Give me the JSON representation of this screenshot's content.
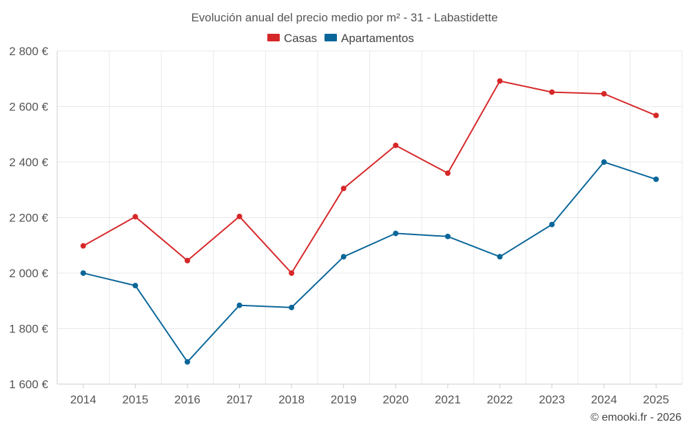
{
  "chart_data": {
    "type": "line",
    "title": "Evolución anual del precio medio por m² - 31 - Labastidette",
    "categories": [
      "2014",
      "2015",
      "2016",
      "2017",
      "2018",
      "2019",
      "2020",
      "2021",
      "2022",
      "2023",
      "2024",
      "2025"
    ],
    "series": [
      {
        "name": "Casas",
        "color": "#d62728",
        "values": [
          2098,
          2203,
          2045,
          2204,
          2000,
          2305,
          2460,
          2360,
          2692,
          2652,
          2646,
          2568
        ]
      },
      {
        "name": "Apartamentos",
        "color": "#0a6699",
        "values": [
          2000,
          1955,
          1680,
          1884,
          1876,
          2059,
          2143,
          2132,
          2059,
          2175,
          2400,
          2338
        ]
      }
    ],
    "ylim": [
      1600,
      2800
    ],
    "yticks": [
      1600,
      1800,
      2000,
      2200,
      2400,
      2600,
      2800
    ],
    "ytick_labels": [
      "1 600 €",
      "1 800 €",
      "2 000 €",
      "2 200 €",
      "2 400 €",
      "2 600 €",
      "2 800 €"
    ],
    "xlabel": "",
    "ylabel": "",
    "grid": true,
    "legend_position": "top-center"
  },
  "credit": "© emooki.fr - 2026"
}
